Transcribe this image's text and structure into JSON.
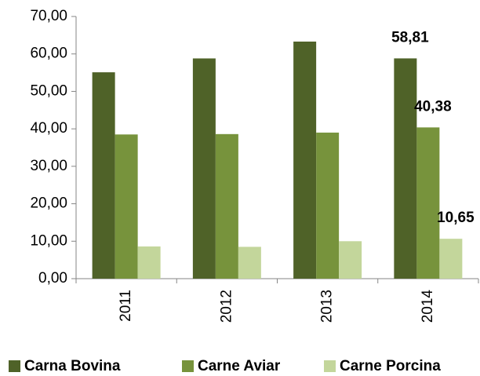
{
  "chart_data": {
    "type": "bar",
    "categories": [
      "2011",
      "2012",
      "2013",
      "2014"
    ],
    "series": [
      {
        "name": "Carna Bovina",
        "color": "#4f6228",
        "values": [
          55.1,
          58.8,
          63.3,
          58.81
        ],
        "value_labels": [
          null,
          null,
          null,
          "58,81"
        ]
      },
      {
        "name": "Carne Aviar",
        "color": "#77933c",
        "values": [
          38.5,
          38.6,
          39.0,
          40.38
        ],
        "value_labels": [
          null,
          null,
          null,
          "40,38"
        ]
      },
      {
        "name": "Carne Porcina",
        "color": "#c3d69b",
        "values": [
          8.6,
          8.5,
          10.0,
          10.65
        ],
        "value_labels": [
          null,
          null,
          null,
          "10,65"
        ]
      }
    ],
    "ylim": [
      0,
      70
    ],
    "yticks": [
      {
        "value": 0,
        "label": "0,00"
      },
      {
        "value": 10,
        "label": "10,00"
      },
      {
        "value": 20,
        "label": "20,00"
      },
      {
        "value": 30,
        "label": "30,00"
      },
      {
        "value": 40,
        "label": "40,00"
      },
      {
        "value": 50,
        "label": "50,00"
      },
      {
        "value": 60,
        "label": "60,00"
      },
      {
        "value": 70,
        "label": "70,00"
      }
    ],
    "grid": false,
    "legend": "bottom"
  }
}
